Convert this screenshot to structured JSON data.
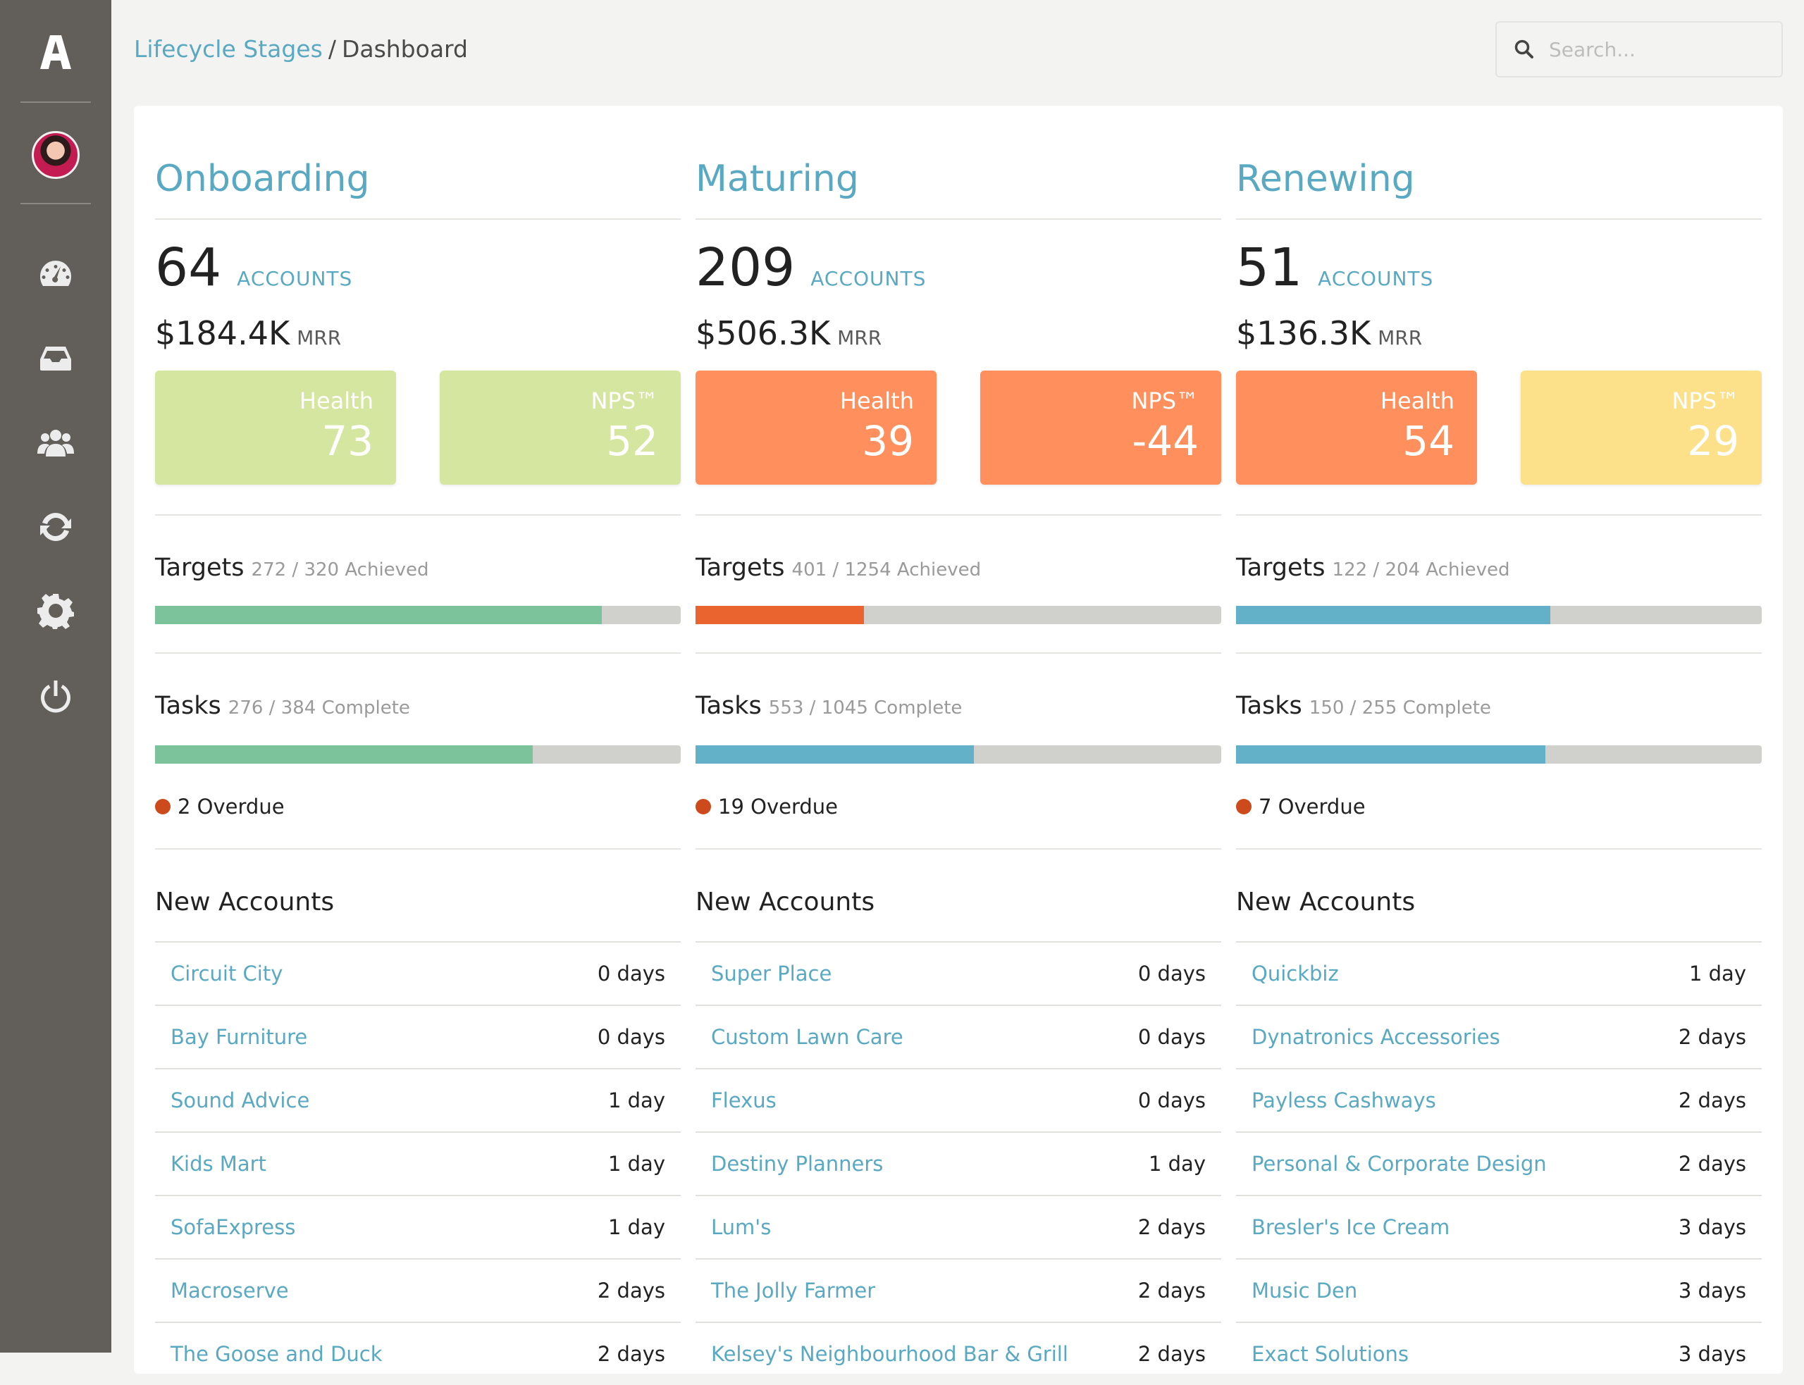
{
  "colors": {
    "accent": "#5aa9c2",
    "sidebar": "#625f5a",
    "green_tile": "#d4e6a0",
    "orange_tile": "#ff8f5c",
    "yellow_tile": "#fde08a",
    "bar_green": "#7cc29a",
    "bar_orange": "#ea6430",
    "bar_blue": "#63b1c9",
    "bar_track": "#d0d0cc",
    "overdue_dot": "#cc4a1c"
  },
  "sidebar": {
    "logo": "A",
    "nav": [
      {
        "icon": "dashboard-icon"
      },
      {
        "icon": "inbox-icon"
      },
      {
        "icon": "users-icon"
      },
      {
        "icon": "refresh-icon"
      },
      {
        "icon": "gear-icon"
      },
      {
        "icon": "power-icon"
      }
    ]
  },
  "breadcrumb": {
    "parent": "Lifecycle Stages",
    "separator": "/",
    "current": "Dashboard"
  },
  "search": {
    "placeholder": "Search..."
  },
  "stages": [
    {
      "title": "Onboarding",
      "accounts": "64",
      "accounts_label": "ACCOUNTS",
      "mrr": "$184.4K",
      "mrr_label": "MRR",
      "health": {
        "label": "Health",
        "value": "73",
        "color": "#d4e6a0"
      },
      "nps": {
        "label": "NPS™",
        "value": "52",
        "color": "#d4e6a0"
      },
      "targets": {
        "label": "Targets",
        "detail": "272 / 320 Achieved",
        "achieved": 272,
        "total": 320,
        "color": "#7cc29a"
      },
      "tasks": {
        "label": "Tasks",
        "detail": "276 / 384 Complete",
        "complete": 276,
        "total": 384,
        "color": "#7cc29a"
      },
      "overdue": "2 Overdue",
      "new_accounts_title": "New Accounts",
      "new_accounts": [
        {
          "name": "Circuit City",
          "age": "0 days"
        },
        {
          "name": "Bay Furniture",
          "age": "0 days"
        },
        {
          "name": "Sound Advice",
          "age": "1 day"
        },
        {
          "name": "Kids Mart",
          "age": "1 day"
        },
        {
          "name": "SofaExpress",
          "age": "1 day"
        },
        {
          "name": "Macroserve",
          "age": "2 days"
        },
        {
          "name": "The Goose and Duck",
          "age": "2 days"
        }
      ]
    },
    {
      "title": "Maturing",
      "accounts": "209",
      "accounts_label": "ACCOUNTS",
      "mrr": "$506.3K",
      "mrr_label": "MRR",
      "health": {
        "label": "Health",
        "value": "39",
        "color": "#ff8f5c"
      },
      "nps": {
        "label": "NPS™",
        "value": "-44",
        "color": "#ff8f5c"
      },
      "targets": {
        "label": "Targets",
        "detail": "401 / 1254 Achieved",
        "achieved": 401,
        "total": 1254,
        "color": "#ea6430"
      },
      "tasks": {
        "label": "Tasks",
        "detail": "553 / 1045 Complete",
        "complete": 553,
        "total": 1045,
        "color": "#63b1c9"
      },
      "overdue": "19 Overdue",
      "new_accounts_title": "New Accounts",
      "new_accounts": [
        {
          "name": "Super Place",
          "age": "0 days"
        },
        {
          "name": "Custom Lawn Care",
          "age": "0 days"
        },
        {
          "name": "Flexus",
          "age": "0 days"
        },
        {
          "name": "Destiny Planners",
          "age": "1 day"
        },
        {
          "name": "Lum's",
          "age": "2 days"
        },
        {
          "name": "The Jolly Farmer",
          "age": "2 days"
        },
        {
          "name": "Kelsey's Neighbourhood Bar & Grill",
          "age": "2 days"
        }
      ]
    },
    {
      "title": "Renewing",
      "accounts": "51",
      "accounts_label": "ACCOUNTS",
      "mrr": "$136.3K",
      "mrr_label": "MRR",
      "health": {
        "label": "Health",
        "value": "54",
        "color": "#ff8f5c"
      },
      "nps": {
        "label": "NPS™",
        "value": "29",
        "color": "#fde08a"
      },
      "targets": {
        "label": "Targets",
        "detail": "122 / 204 Achieved",
        "achieved": 122,
        "total": 204,
        "color": "#63b1c9"
      },
      "tasks": {
        "label": "Tasks",
        "detail": "150 / 255 Complete",
        "complete": 150,
        "total": 255,
        "color": "#63b1c9"
      },
      "overdue": "7 Overdue",
      "new_accounts_title": "New Accounts",
      "new_accounts": [
        {
          "name": "Quickbiz",
          "age": "1 day"
        },
        {
          "name": "Dynatronics Accessories",
          "age": "2 days"
        },
        {
          "name": "Payless Cashways",
          "age": "2 days"
        },
        {
          "name": "Personal & Corporate Design",
          "age": "2 days"
        },
        {
          "name": "Bresler's Ice Cream",
          "age": "3 days"
        },
        {
          "name": "Music Den",
          "age": "3 days"
        },
        {
          "name": "Exact Solutions",
          "age": "3 days"
        }
      ]
    }
  ]
}
